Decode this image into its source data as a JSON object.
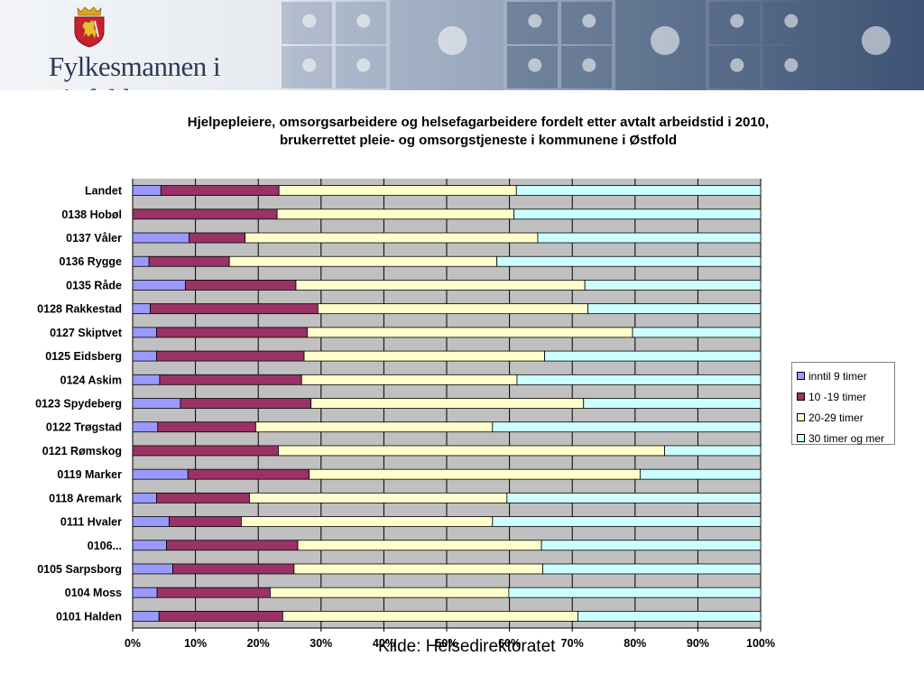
{
  "header": {
    "org_name": "Fylkesmannen i Østfold",
    "photo_tiles": [
      "photo-tile",
      "photo-tile",
      "photo-tile",
      "photo-tile",
      "photo-tile",
      "photo-tile",
      "photo-tile",
      "photo-tile",
      "photo-tile",
      "photo-tile",
      "photo-tile",
      "photo-tile"
    ]
  },
  "source_note": "Kilde: Helsedirektoratet",
  "chart_data": {
    "type": "bar",
    "orientation": "horizontal",
    "stacked": "percent",
    "title_lines": [
      "Hjelpepleiere, omsorgsarbeidere og helsefagarbeidere fordelt etter avtalt arbeidstid i 2010,",
      "brukerrettet pleie- og omsorgstjeneste i kommunene i Østfold"
    ],
    "categories": [
      "Landet",
      "0138 Hobøl",
      "0137 Våler",
      "0136 Rygge",
      "0135 Råde",
      "0128 Rakkestad",
      "0127 Skiptvet",
      "0125 Eidsberg",
      "0124 Askim",
      "0123 Spydeberg",
      "0122 Trøgstad",
      "0121 Rømskog",
      "0119 Marker",
      "0118 Aremark",
      "0111 Hvaler",
      "0106...",
      "0105 Sarpsborg",
      "0104 Moss",
      "0101 Halden"
    ],
    "series": [
      {
        "name": "inntil 9 timer",
        "color": "#9999ff",
        "values": [
          4.5,
          0,
          9,
          2.6,
          8.4,
          2.8,
          3.8,
          3.8,
          4.3,
          7.6,
          4.0,
          0,
          8.8,
          3.8,
          5.8,
          5.4,
          6.4,
          3.9,
          4.2
        ]
      },
      {
        "name": "10 -19 timer",
        "color": "#993366",
        "values": [
          18.8,
          23.0,
          8.9,
          12.8,
          17.6,
          26.7,
          24.0,
          23.5,
          22.6,
          20.8,
          15.6,
          23.2,
          19.3,
          14.8,
          11.5,
          20.9,
          19.3,
          18.0,
          19.7
        ]
      },
      {
        "name": "20-29 timer",
        "color": "#ffffcc",
        "values": [
          37.8,
          37.7,
          46.6,
          42.6,
          46.0,
          43.0,
          51.8,
          38.3,
          34.3,
          43.4,
          37.7,
          61.5,
          52.7,
          41.0,
          40.0,
          38.8,
          39.6,
          38.0,
          47.0
        ]
      },
      {
        "name": "30 timer og mer",
        "color": "#ccffff",
        "values": [
          38.9,
          39.3,
          35.5,
          42.0,
          28.0,
          27.5,
          20.4,
          34.4,
          38.8,
          28.2,
          42.7,
          15.3,
          19.2,
          40.4,
          42.7,
          34.9,
          34.7,
          40.1,
          29.1
        ]
      }
    ],
    "xlim": [
      0,
      100
    ],
    "x_ticks": [
      "0%",
      "10%",
      "20%",
      "30%",
      "40%",
      "50%",
      "60%",
      "70%",
      "80%",
      "90%",
      "100%"
    ],
    "plot_background": "#c0c0c0",
    "grid": true,
    "legend_position": "right"
  }
}
